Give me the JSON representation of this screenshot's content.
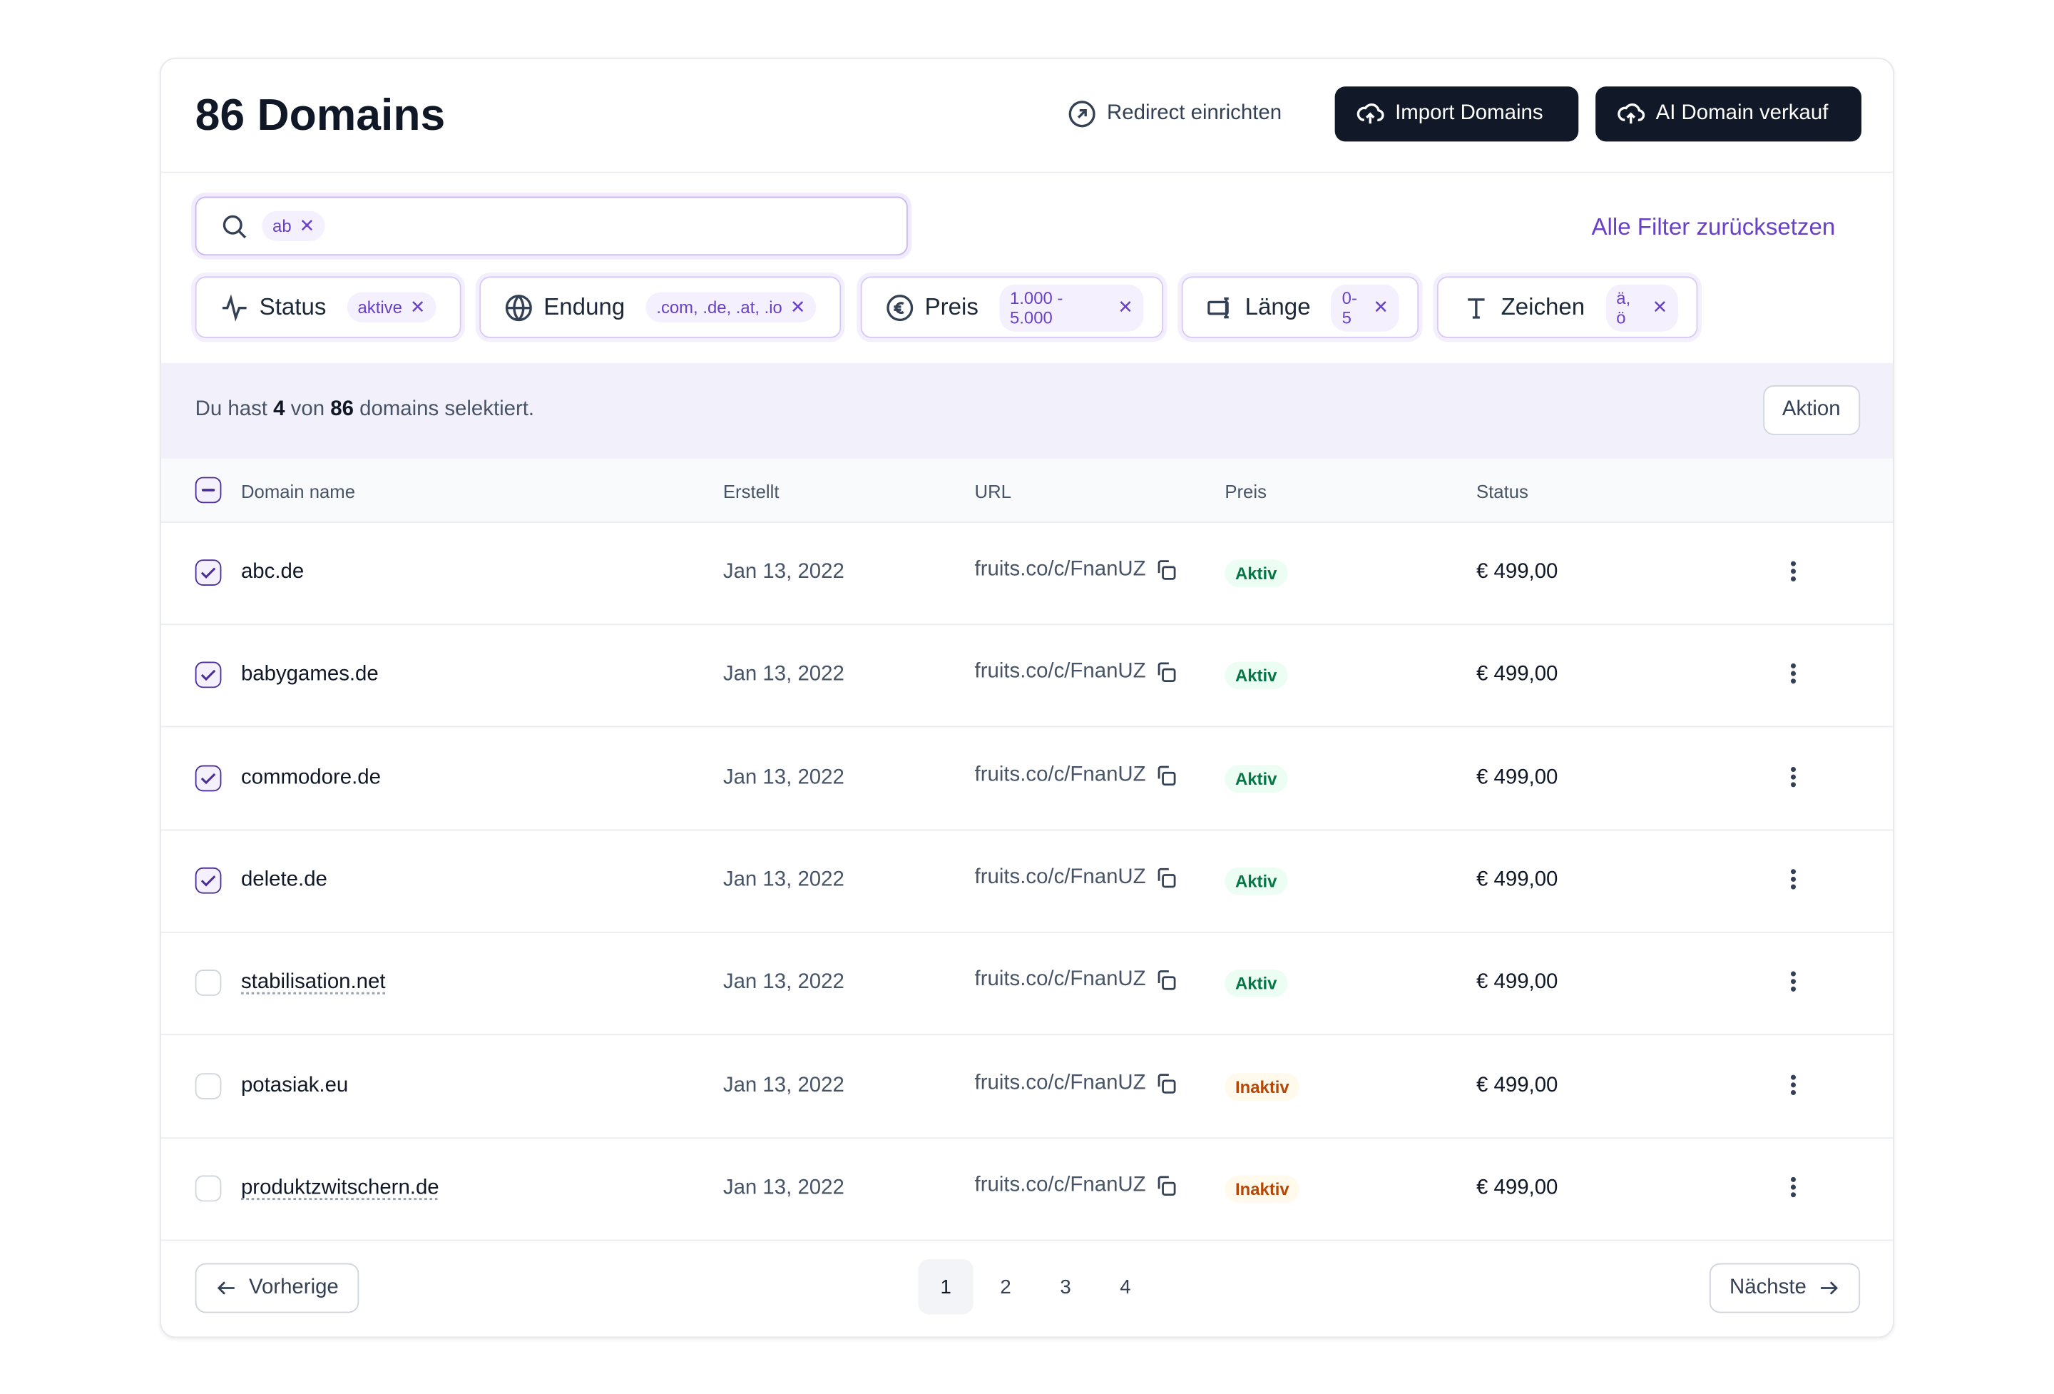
{
  "header": {
    "title": "86 Domains",
    "redirect_button": "Redirect einrichten",
    "import_button": "Import Domains",
    "ai_button": "AI Domain verkauf"
  },
  "search": {
    "chip": "ab"
  },
  "reset_filters": "Alle Filter zurücksetzen",
  "filters": [
    {
      "label": "Status",
      "value": "aktive"
    },
    {
      "label": "Endung",
      "value": ".com, .de, .at, .io"
    },
    {
      "label": "Preis",
      "value": "1.000 - 5.000"
    },
    {
      "label": "Länge",
      "value": "0-5"
    },
    {
      "label": "Zeichen",
      "value": "ä, ö"
    }
  ],
  "selection": {
    "prefix": "Du hast",
    "selected": "4",
    "middle": "von",
    "total": "86",
    "suffix": "domains selektiert.",
    "action": "Aktion"
  },
  "table": {
    "columns": [
      "Domain name",
      "Erstellt",
      "URL",
      "Preis",
      "Status"
    ],
    "rows": [
      {
        "checked": true,
        "underlined": false,
        "name": "abc.de",
        "created": "Jan 13, 2022",
        "url": "fruits.co/c/FnanUZ",
        "status": "Aktiv",
        "status_color": "#067647",
        "status_bg": "#ecfdf3",
        "price": "€ 499,00"
      },
      {
        "checked": true,
        "underlined": false,
        "name": "babygames.de",
        "created": "Jan 13, 2022",
        "url": "fruits.co/c/FnanUZ",
        "status": "Aktiv",
        "status_color": "#067647",
        "status_bg": "#ecfdf3",
        "price": "€ 499,00"
      },
      {
        "checked": true,
        "underlined": false,
        "name": "commodore.de",
        "created": "Jan 13, 2022",
        "url": "fruits.co/c/FnanUZ",
        "status": "Aktiv",
        "status_color": "#067647",
        "status_bg": "#ecfdf3",
        "price": "€ 499,00"
      },
      {
        "checked": true,
        "underlined": false,
        "name": "delete.de",
        "created": "Jan 13, 2022",
        "url": "fruits.co/c/FnanUZ",
        "status": "Aktiv",
        "status_color": "#067647",
        "status_bg": "#ecfdf3",
        "price": "€ 499,00"
      },
      {
        "checked": false,
        "underlined": true,
        "name": "stabilisation.net",
        "created": "Jan 13, 2022",
        "url": "fruits.co/c/FnanUZ",
        "status": "Aktiv",
        "status_color": "#067647",
        "status_bg": "#ecfdf3",
        "price": "€ 499,00"
      },
      {
        "checked": false,
        "underlined": false,
        "name": "potasiak.eu",
        "created": "Jan 13, 2022",
        "url": "fruits.co/c/FnanUZ",
        "status": "Inaktiv",
        "status_color": "#b54708",
        "status_bg": "#fffaeb",
        "price": "€ 499,00"
      },
      {
        "checked": false,
        "underlined": true,
        "name": "produktzwitschern.de",
        "created": "Jan 13, 2022",
        "url": "fruits.co/c/FnanUZ",
        "status": "Inaktiv",
        "status_color": "#b54708",
        "status_bg": "#fffaeb",
        "price": "€ 499,00"
      }
    ]
  },
  "pagination": {
    "previous": "Vorherige",
    "next": "Nächste",
    "pages": [
      "1",
      "2",
      "3",
      "4"
    ],
    "current": 0
  }
}
